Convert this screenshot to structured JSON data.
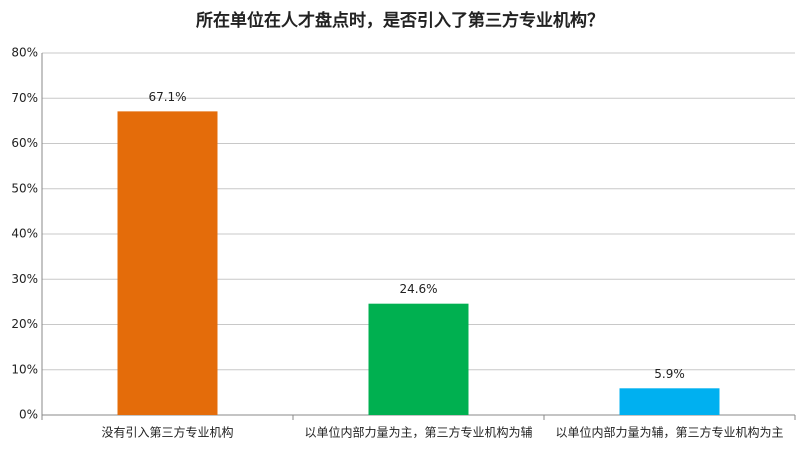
{
  "chart_data": {
    "type": "bar",
    "title": "所在单位在人才盘点时，是否引入了第三方专业机构？",
    "categories": [
      "没有引入第三方专业机构",
      "以单位内部力量为主，第三方专业机构为辅",
      "以单位内部力量为辅，第三方专业机构为主"
    ],
    "values": [
      67.1,
      24.6,
      5.9
    ],
    "value_labels": [
      "67.1%",
      "24.6%",
      "5.9%"
    ],
    "colors": [
      "#e46c0a",
      "#00b050",
      "#00b0f0"
    ],
    "ylim": [
      0,
      80
    ],
    "yticks": [
      {
        "value": 0,
        "label": "0%"
      },
      {
        "value": 10,
        "label": "10%"
      },
      {
        "value": 20,
        "label": "20%"
      },
      {
        "value": 30,
        "label": "30%"
      },
      {
        "value": 40,
        "label": "40%"
      },
      {
        "value": 50,
        "label": "50%"
      },
      {
        "value": 60,
        "label": "60%"
      },
      {
        "value": 70,
        "label": "70%"
      },
      {
        "value": 80,
        "label": "80%"
      }
    ],
    "grid": true
  }
}
